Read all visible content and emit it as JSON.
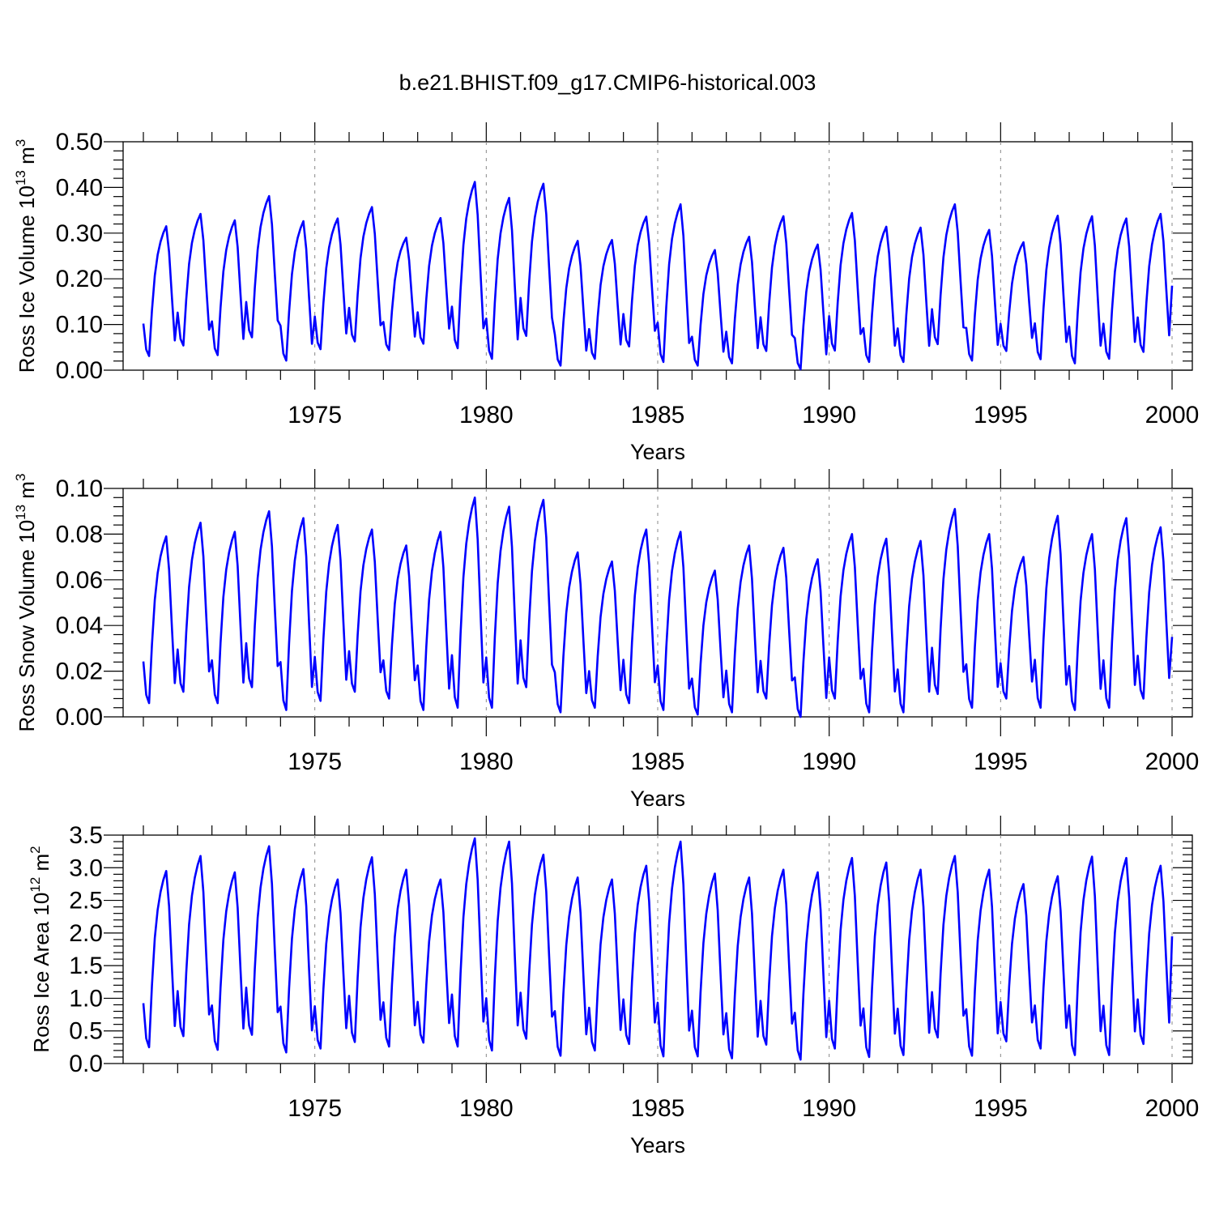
{
  "figure_title": "b.e21.BHIST.f09_g17.CMIP6-historical.003",
  "colors": {
    "line": "#0000ff",
    "axis": "#000000",
    "grid": "#888888"
  },
  "chart_data": [
    {
      "type": "line",
      "title": "",
      "ylabel_main": "Ross Ice Volume 10",
      "ylabel_sup": "13",
      "ylabel_unit": " m",
      "ylabel_unit_sup": "3",
      "xlabel": "Years",
      "xlim": [
        1970.0,
        2000.0
      ],
      "ylim": [
        0.0,
        0.5
      ],
      "x_ticks": [
        1975,
        1980,
        1985,
        1990,
        1995,
        2000
      ],
      "x_tick_labels": [
        "1975",
        "1980",
        "1985",
        "1990",
        "1995",
        "2000"
      ],
      "y_ticks": [
        0.0,
        0.1,
        0.2,
        0.3,
        0.4,
        0.5
      ],
      "y_tick_labels": [
        "0.00",
        "0.10",
        "0.20",
        "0.30",
        "0.40",
        "0.50"
      ],
      "grid": "dashed vertical at 5-year ticks",
      "series": [
        {
          "name": "Ross Ice Volume",
          "start_year": 1970.0,
          "step": 0.08333,
          "peaks": [
            0.315,
            0.342,
            0.328,
            0.381,
            0.326,
            0.332,
            0.357,
            0.29,
            0.333,
            0.412,
            0.377,
            0.408,
            0.283,
            0.285,
            0.336,
            0.363,
            0.263,
            0.292,
            0.337,
            0.275,
            0.344,
            0.314,
            0.312,
            0.363,
            0.307,
            0.28,
            0.338,
            0.337,
            0.332,
            0.342
          ],
          "troughs": [
            0.031,
            0.054,
            0.033,
            0.072,
            0.021,
            0.046,
            0.063,
            0.044,
            0.058,
            0.048,
            0.025,
            0.075,
            0.01,
            0.025,
            0.052,
            0.018,
            0.01,
            0.015,
            0.042,
            0.002,
            0.043,
            0.018,
            0.018,
            0.057,
            0.021,
            0.042,
            0.024,
            0.015,
            0.025,
            0.04
          ],
          "end_value": 0.185
        }
      ]
    },
    {
      "type": "line",
      "title": "",
      "ylabel_main": "Ross Snow Volume 10",
      "ylabel_sup": "13",
      "ylabel_unit": " m",
      "ylabel_unit_sup": "3",
      "xlabel": "Years",
      "xlim": [
        1970.0,
        2000.0
      ],
      "ylim": [
        0.0,
        0.1
      ],
      "x_ticks": [
        1975,
        1980,
        1985,
        1990,
        1995,
        2000
      ],
      "x_tick_labels": [
        "1975",
        "1980",
        "1985",
        "1990",
        "1995",
        "2000"
      ],
      "y_ticks": [
        0.0,
        0.02,
        0.04,
        0.06,
        0.08,
        0.1
      ],
      "y_tick_labels": [
        "0.00",
        "0.02",
        "0.04",
        "0.06",
        "0.08",
        "0.10"
      ],
      "grid": "dashed vertical at 5-year ticks",
      "series": [
        {
          "name": "Ross Snow Volume",
          "start_year": 1970.0,
          "step": 0.08333,
          "peaks": [
            0.079,
            0.085,
            0.081,
            0.09,
            0.087,
            0.084,
            0.082,
            0.075,
            0.081,
            0.096,
            0.092,
            0.095,
            0.072,
            0.068,
            0.082,
            0.081,
            0.064,
            0.075,
            0.074,
            0.069,
            0.08,
            0.078,
            0.077,
            0.091,
            0.08,
            0.07,
            0.088,
            0.08,
            0.087,
            0.083
          ],
          "troughs": [
            0.006,
            0.011,
            0.006,
            0.013,
            0.003,
            0.007,
            0.011,
            0.008,
            0.003,
            0.004,
            0.004,
            0.013,
            0.002,
            0.004,
            0.006,
            0.003,
            0.001,
            0.002,
            0.008,
            0.0,
            0.008,
            0.002,
            0.002,
            0.01,
            0.004,
            0.008,
            0.004,
            0.003,
            0.004,
            0.008
          ],
          "end_value": 0.035
        }
      ]
    },
    {
      "type": "line",
      "title": "",
      "ylabel_main": "Ross Ice Area 10",
      "ylabel_sup": "12",
      "ylabel_unit": " m",
      "ylabel_unit_sup": "2",
      "xlabel": "Years",
      "xlim": [
        1970.0,
        2000.0
      ],
      "ylim": [
        0.0,
        3.5
      ],
      "x_ticks": [
        1975,
        1980,
        1985,
        1990,
        1995,
        2000
      ],
      "x_tick_labels": [
        "1975",
        "1980",
        "1985",
        "1990",
        "1995",
        "2000"
      ],
      "y_ticks": [
        0.0,
        0.5,
        1.0,
        1.5,
        2.0,
        2.5,
        3.0,
        3.5
      ],
      "y_tick_labels": [
        "0.0",
        "0.5",
        "1.0",
        "1.5",
        "2.0",
        "2.5",
        "3.0",
        "3.5"
      ],
      "grid": "dashed vertical at 5-year ticks",
      "series": [
        {
          "name": "Ross Ice Area",
          "start_year": 1970.0,
          "step": 0.08333,
          "peaks": [
            2.95,
            3.18,
            2.93,
            3.33,
            2.98,
            2.82,
            3.16,
            2.97,
            2.82,
            3.45,
            3.4,
            3.2,
            2.85,
            2.82,
            3.03,
            3.4,
            2.91,
            2.85,
            2.97,
            2.93,
            3.15,
            3.08,
            2.97,
            3.18,
            2.97,
            2.75,
            2.87,
            3.17,
            3.15,
            3.03
          ],
          "troughs": [
            0.25,
            0.42,
            0.21,
            0.44,
            0.17,
            0.23,
            0.33,
            0.26,
            0.32,
            0.26,
            0.2,
            0.38,
            0.12,
            0.2,
            0.3,
            0.11,
            0.11,
            0.08,
            0.29,
            0.06,
            0.23,
            0.1,
            0.13,
            0.4,
            0.12,
            0.34,
            0.23,
            0.13,
            0.13,
            0.3
          ],
          "end_value": 1.95
        }
      ]
    }
  ]
}
